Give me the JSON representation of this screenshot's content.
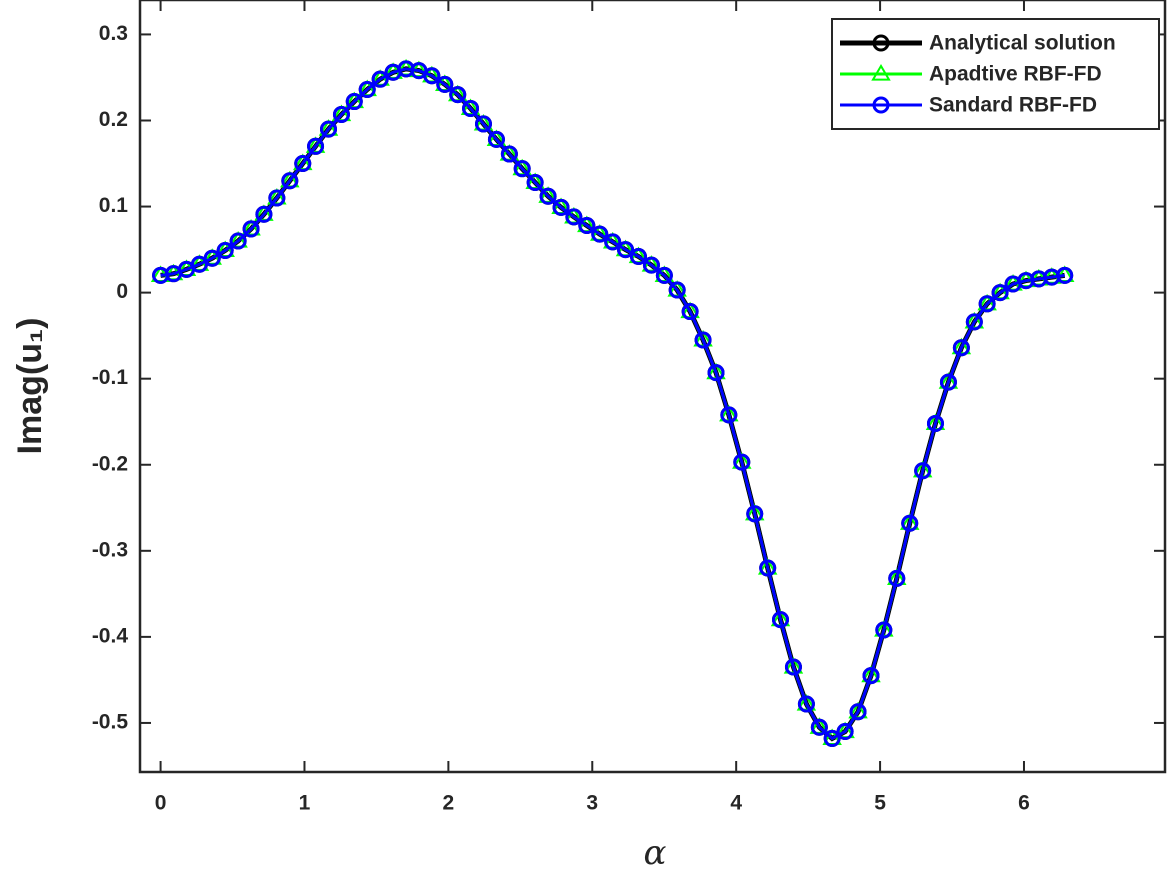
{
  "chart_data": {
    "type": "line",
    "xlabel": "α",
    "ylabel": "Imag(u₁)",
    "x": [
      0,
      0.09,
      0.18,
      0.27,
      0.359,
      0.449,
      0.539,
      0.629,
      0.718,
      0.808,
      0.898,
      0.988,
      1.077,
      1.167,
      1.257,
      1.346,
      1.436,
      1.526,
      1.616,
      1.706,
      1.795,
      1.885,
      1.975,
      2.065,
      2.154,
      2.244,
      2.334,
      2.424,
      2.513,
      2.603,
      2.693,
      2.783,
      2.872,
      2.962,
      3.052,
      3.142,
      3.231,
      3.321,
      3.411,
      3.501,
      3.59,
      3.68,
      3.77,
      3.86,
      3.949,
      4.039,
      4.129,
      4.219,
      4.308,
      4.398,
      4.488,
      4.578,
      4.667,
      4.757,
      4.847,
      4.937,
      5.026,
      5.116,
      5.206,
      5.296,
      5.385,
      5.475,
      5.565,
      5.655,
      5.744,
      5.834,
      5.924,
      6.014,
      6.103,
      6.193,
      6.283
    ],
    "series": [
      {
        "name": "Analytical solution",
        "color": "#000000",
        "marker": "circle",
        "values": [
          0.02,
          0.022,
          0.027,
          0.033,
          0.04,
          0.049,
          0.06,
          0.074,
          0.091,
          0.11,
          0.13,
          0.15,
          0.17,
          0.19,
          0.207,
          0.222,
          0.236,
          0.248,
          0.256,
          0.26,
          0.258,
          0.252,
          0.242,
          0.23,
          0.214,
          0.196,
          0.178,
          0.161,
          0.144,
          0.128,
          0.112,
          0.099,
          0.088,
          0.078,
          0.068,
          0.059,
          0.05,
          0.042,
          0.032,
          0.02,
          0.003,
          -0.022,
          -0.055,
          -0.093,
          -0.142,
          -0.197,
          -0.257,
          -0.32,
          -0.38,
          -0.435,
          -0.478,
          -0.505,
          -0.518,
          -0.51,
          -0.487,
          -0.445,
          -0.392,
          -0.332,
          -0.268,
          -0.207,
          -0.152,
          -0.104,
          -0.064,
          -0.034,
          -0.013,
          0.0,
          0.01,
          0.014,
          0.016,
          0.018,
          0.02
        ]
      },
      {
        "name": "Apadtive RBF-FD",
        "color": "#00ff00",
        "marker": "triangle",
        "values": [
          0.02,
          0.022,
          0.027,
          0.033,
          0.04,
          0.049,
          0.06,
          0.074,
          0.091,
          0.11,
          0.13,
          0.15,
          0.17,
          0.19,
          0.207,
          0.222,
          0.236,
          0.248,
          0.256,
          0.26,
          0.258,
          0.252,
          0.242,
          0.23,
          0.214,
          0.196,
          0.178,
          0.161,
          0.144,
          0.128,
          0.112,
          0.099,
          0.088,
          0.078,
          0.068,
          0.059,
          0.05,
          0.042,
          0.032,
          0.02,
          0.003,
          -0.022,
          -0.055,
          -0.093,
          -0.142,
          -0.197,
          -0.257,
          -0.32,
          -0.38,
          -0.435,
          -0.478,
          -0.505,
          -0.518,
          -0.51,
          -0.487,
          -0.445,
          -0.392,
          -0.332,
          -0.268,
          -0.207,
          -0.152,
          -0.104,
          -0.064,
          -0.034,
          -0.013,
          0.0,
          0.01,
          0.014,
          0.016,
          0.018,
          0.02
        ]
      },
      {
        "name": "Sandard RBF-FD",
        "color": "#0000ff",
        "marker": "circle",
        "values": [
          0.02,
          0.022,
          0.027,
          0.033,
          0.04,
          0.049,
          0.06,
          0.074,
          0.091,
          0.11,
          0.13,
          0.15,
          0.17,
          0.19,
          0.207,
          0.222,
          0.236,
          0.248,
          0.256,
          0.26,
          0.258,
          0.252,
          0.242,
          0.23,
          0.214,
          0.196,
          0.178,
          0.161,
          0.144,
          0.128,
          0.112,
          0.099,
          0.088,
          0.078,
          0.068,
          0.059,
          0.05,
          0.042,
          0.032,
          0.02,
          0.003,
          -0.022,
          -0.055,
          -0.093,
          -0.142,
          -0.197,
          -0.257,
          -0.32,
          -0.38,
          -0.435,
          -0.478,
          -0.505,
          -0.518,
          -0.51,
          -0.487,
          -0.445,
          -0.392,
          -0.332,
          -0.268,
          -0.207,
          -0.152,
          -0.104,
          -0.064,
          -0.034,
          -0.013,
          0.0,
          0.01,
          0.014,
          0.016,
          0.018,
          0.02
        ]
      }
    ],
    "xlim": [
      -0.143,
      6.98
    ],
    "ylim": [
      -0.557,
      0.34
    ],
    "xticks": [
      0,
      1,
      2,
      3,
      4,
      5,
      6
    ],
    "yticks": [
      -0.5,
      -0.4,
      -0.3,
      -0.2,
      -0.1,
      0,
      0.1,
      0.2,
      0.3
    ],
    "legend": "upper right"
  }
}
